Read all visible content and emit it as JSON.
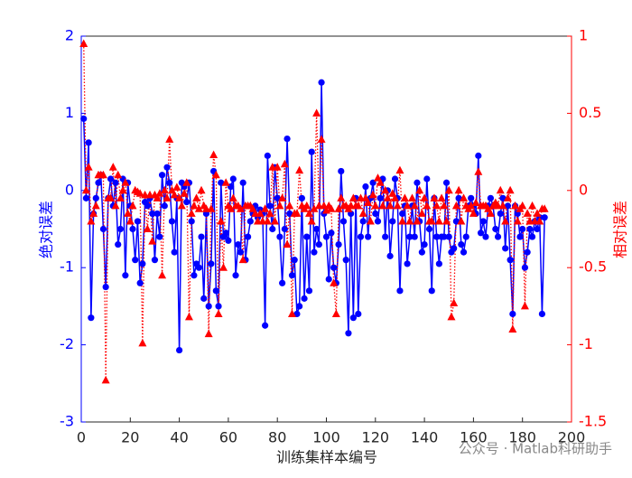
{
  "chart_data": {
    "type": "line",
    "xlabel": "训练集样本编号",
    "ylabel": "绝对误差",
    "y2label": "相对误差",
    "annotation": "公众号 · Matlab科研助手",
    "xlim": [
      0,
      200
    ],
    "xticks": [
      0,
      20,
      40,
      60,
      80,
      100,
      120,
      140,
      160,
      180,
      200
    ],
    "ylim": [
      -3,
      2
    ],
    "yticks": [
      -3,
      -2,
      -1,
      0,
      1,
      2
    ],
    "y2lim": [
      -1.5,
      1
    ],
    "y2ticks": [
      -1.5,
      -1,
      -0.5,
      0,
      0.5,
      1
    ],
    "x": [
      1,
      2,
      3,
      4,
      5,
      6,
      7,
      8,
      9,
      10,
      11,
      12,
      13,
      14,
      15,
      16,
      17,
      18,
      19,
      20,
      21,
      22,
      23,
      24,
      25,
      26,
      27,
      28,
      29,
      30,
      31,
      32,
      33,
      34,
      35,
      36,
      37,
      38,
      39,
      40,
      41,
      42,
      43,
      44,
      45,
      46,
      47,
      48,
      49,
      50,
      51,
      52,
      53,
      54,
      55,
      56,
      57,
      58,
      59,
      60,
      61,
      62,
      63,
      64,
      65,
      66,
      67,
      68,
      69,
      70,
      71,
      72,
      73,
      74,
      75,
      76,
      77,
      78,
      79,
      80,
      81,
      82,
      83,
      84,
      85,
      86,
      87,
      88,
      89,
      90,
      91,
      92,
      93,
      94,
      95,
      96,
      97,
      98,
      99,
      100,
      101,
      102,
      103,
      104,
      105,
      106,
      107,
      108,
      109,
      110,
      111,
      112,
      113,
      114,
      115,
      116,
      117,
      118,
      119,
      120,
      121,
      122,
      123,
      124,
      125,
      126,
      127,
      128,
      129,
      130,
      131,
      132,
      133,
      134,
      135,
      136,
      137,
      138,
      139,
      140,
      141,
      142,
      143,
      144,
      145,
      146,
      147,
      148,
      149,
      150,
      151,
      152,
      153,
      154,
      155,
      156,
      157,
      158,
      159,
      160,
      161,
      162,
      163,
      164,
      165,
      166,
      167,
      168,
      169,
      170,
      171,
      172,
      173,
      174,
      175,
      176,
      177,
      178,
      179,
      180,
      181,
      182,
      183,
      184,
      185,
      186,
      187,
      188,
      189
    ],
    "series": [
      {
        "color": "#0000ff",
        "axis": "y",
        "values": [
          0.93,
          -0.1,
          0.62,
          -1.65,
          -0.3,
          -0.1,
          0.1,
          0.2,
          -0.5,
          -1.25,
          -0.1,
          0.15,
          -0.2,
          0.1,
          -0.7,
          -0.5,
          0.15,
          -1.1,
          0.1,
          -0.2,
          -0.5,
          -0.9,
          -0.4,
          -1.2,
          -0.95,
          -0.15,
          -0.2,
          -0.1,
          -0.3,
          -0.9,
          -0.3,
          -0.6,
          0.2,
          -0.2,
          0.3,
          0.1,
          -0.4,
          -0.8,
          -0.1,
          -2.07,
          0.1,
          0.05,
          -0.15,
          0.1,
          -0.4,
          -1.1,
          -0.95,
          -1.0,
          -0.6,
          -1.4,
          -0.3,
          -1.5,
          -0.95,
          0.25,
          -1.3,
          -1.5,
          0.1,
          -0.6,
          -0.55,
          -0.65,
          0.05,
          0.15,
          -1.1,
          -0.7,
          -0.8,
          0.1,
          -0.9,
          -0.6,
          -0.4,
          -0.3,
          -0.2,
          -0.35,
          -0.25,
          -0.3,
          -1.75,
          0.45,
          -0.2,
          -0.5,
          0.3,
          -0.1,
          -0.6,
          -1.2,
          -0.5,
          0.67,
          -0.3,
          -1.1,
          -0.9,
          -1.6,
          -1.5,
          -0.1,
          -1.4,
          -0.6,
          -1.3,
          0.5,
          -0.8,
          -0.5,
          -0.7,
          1.4,
          -0.3,
          -0.6,
          -1.15,
          -0.55,
          -1.0,
          -1.2,
          -0.7,
          0.25,
          -0.4,
          -0.9,
          -1.85,
          -0.3,
          -1.65,
          -0.1,
          -1.6,
          -0.6,
          -0.4,
          0.05,
          -0.6,
          -0.1,
          0.1,
          -0.3,
          -0.4,
          -0.1,
          0.15,
          -0.6,
          0.0,
          -0.85,
          -0.4,
          0.15,
          -0.1,
          -1.3,
          -0.3,
          -0.2,
          -0.95,
          -0.6,
          -0.2,
          -0.6,
          0.1,
          -0.4,
          -0.8,
          -0.7,
          0.15,
          -0.5,
          -1.3,
          -0.1,
          -0.6,
          -0.95,
          -0.6,
          -0.6,
          0.1,
          -0.6,
          -0.8,
          -0.75,
          -0.4,
          -0.1,
          -0.7,
          -0.8,
          -0.6,
          -0.2,
          -0.1,
          -0.2,
          -0.3,
          0.45,
          -0.55,
          -0.4,
          -0.6,
          -0.2,
          -0.1,
          -0.2,
          -0.5,
          -0.6,
          -0.3,
          -0.1,
          -0.75,
          -0.2,
          -0.9,
          -1.6,
          -0.2,
          -0.3,
          -0.6,
          -0.5,
          -1.0,
          -0.8,
          -0.5,
          -0.6,
          -0.4,
          -0.5,
          -0.35,
          -1.6,
          -0.35
        ]
      },
      {
        "color": "#ff0000",
        "axis": "y2",
        "values": [
          0.95,
          0,
          0.15,
          -0.2,
          -0.15,
          -0.1,
          0.1,
          0.1,
          0.1,
          -1.23,
          -0.05,
          -0.05,
          0.15,
          -0.1,
          0.1,
          -0.05,
          0.0,
          0.05,
          -0.15,
          -0.2,
          -0.1,
          0.0,
          -0.01,
          -0.02,
          -0.99,
          -0.03,
          -0.25,
          -0.03,
          -0.33,
          -0.03,
          -0.05,
          -0.02,
          -0.55,
          0.0,
          -0.05,
          0.33,
          0.0,
          -0.03,
          0.02,
          -0.05,
          -0.1,
          -0.02,
          0.05,
          -0.82,
          -0.15,
          -0.1,
          -0.05,
          -0.12,
          0.0,
          -0.1,
          -0.12,
          -0.93,
          -0.12,
          0.23,
          0.1,
          -0.8,
          -0.2,
          -0.5,
          0.05,
          -0.1,
          -0.12,
          -0.05,
          -0.1,
          -0.1,
          -0.12,
          -0.45,
          -0.1,
          -0.1,
          -0.1,
          -0.12,
          -0.15,
          -0.2,
          -0.15,
          -0.2,
          -0.12,
          -0.2,
          -0.15,
          0.15,
          -0.2,
          0.15,
          -0.1,
          -0.05,
          0.17,
          -0.35,
          -0.1,
          -0.8,
          -0.15,
          -0.15,
          0.13,
          -0.1,
          -0.12,
          -0.1,
          -0.15,
          -0.2,
          -0.12,
          0.5,
          -0.1,
          0.33,
          -0.1,
          -0.13,
          -0.1,
          -0.12,
          -0.6,
          -0.8,
          -0.12,
          -0.05,
          -0.1,
          -0.1,
          -0.12,
          -0.1,
          -0.05,
          -0.1,
          -0.1,
          -0.05,
          -0.15,
          -0.05,
          -0.08,
          -0.2,
          -0.03,
          -0.1,
          0.08,
          0.05,
          -0.1,
          0.0,
          -0.05,
          -0.1,
          -0.02,
          -0.05,
          -0.1,
          0.13,
          -0.2,
          -0.05,
          -0.1,
          -0.2,
          -0.05,
          -0.1,
          -0.2,
          0.0,
          -0.15,
          -0.05,
          -0.1,
          -0.2,
          -0.2,
          -0.05,
          -0.1,
          -0.2,
          -0.05,
          -0.1,
          -0.2,
          0.0,
          -0.82,
          -0.73,
          -0.1,
          0.0,
          -0.2,
          -0.05,
          -0.1,
          -0.12,
          -0.1,
          -0.15,
          -0.08,
          0.12,
          -0.1,
          -0.1,
          -0.1,
          -0.12,
          -0.15,
          -0.1,
          -0.08,
          -0.1,
          0.0,
          -0.1,
          -0.2,
          -0.05,
          0.0,
          -0.9,
          -0.1,
          -0.2,
          -0.12,
          -0.1,
          -0.75,
          -0.15,
          -0.2,
          -0.1,
          -0.2,
          -0.15,
          -0.2,
          -0.12,
          -0.12
        ]
      }
    ]
  }
}
